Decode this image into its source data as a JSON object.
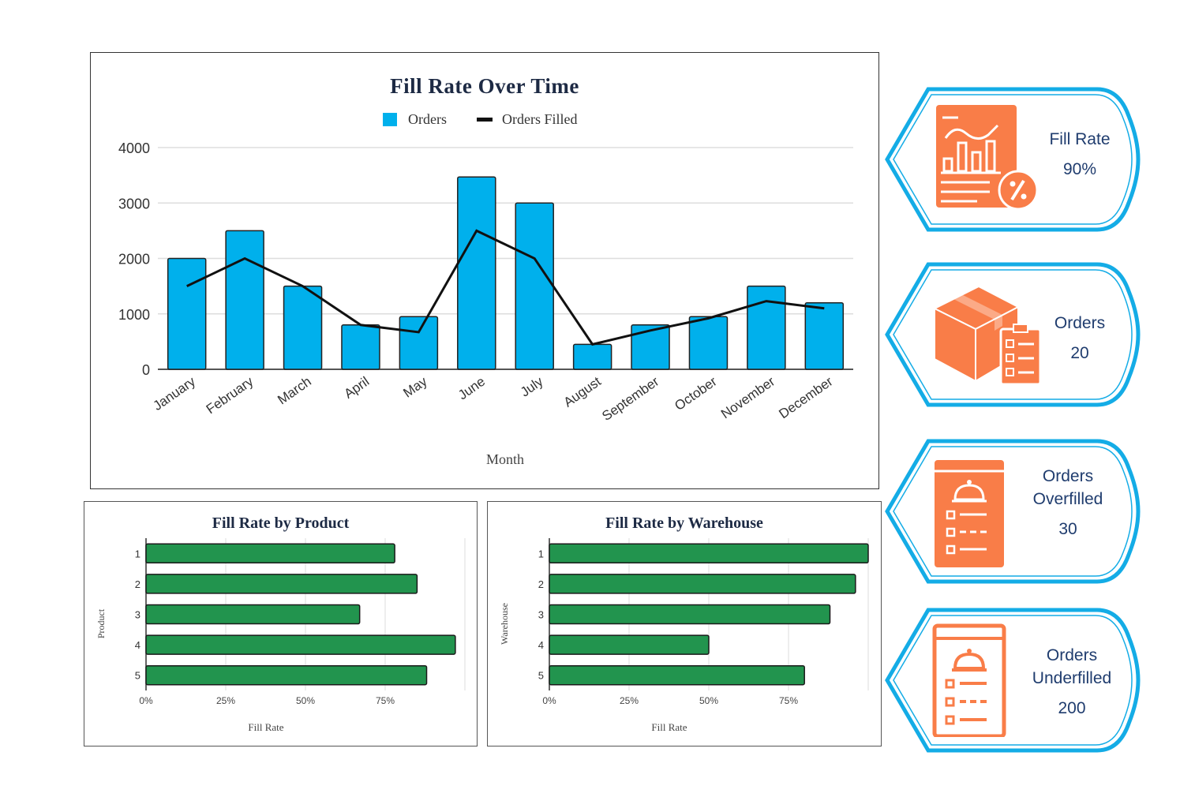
{
  "colors": {
    "orders": "#00B0EC",
    "filled_line": "#111111",
    "bars_green": "#22944E",
    "card_border": "#14ACE6",
    "icon": "#F97D48",
    "card_text": "#1F3C6E"
  },
  "chart_data": [
    {
      "type": "bar+line",
      "title": "Fill Rate Over Time",
      "xlabel": "Month",
      "ylabel": "",
      "ylim": [
        0,
        4000
      ],
      "yticks": [
        "0",
        "1000",
        "2000",
        "3000",
        "4000"
      ],
      "grid": true,
      "legend": "top",
      "categories": [
        "January",
        "February",
        "March",
        "April",
        "May",
        "June",
        "July",
        "August",
        "September",
        "October",
        "November",
        "December"
      ],
      "series": [
        {
          "name": "Orders",
          "type": "bar",
          "values": [
            2000,
            2500,
            1500,
            800,
            950,
            3470,
            3000,
            450,
            800,
            950,
            1500,
            1200
          ]
        },
        {
          "name": "Orders Filled",
          "type": "line",
          "values": [
            1500,
            2000,
            1500,
            800,
            670,
            2500,
            2000,
            450,
            700,
            920,
            1230,
            1100
          ]
        }
      ]
    },
    {
      "type": "bar",
      "orientation": "horizontal",
      "title": "Fill Rate by Product",
      "xlabel": "Fill Rate",
      "ylabel": "Product",
      "categories": [
        "1",
        "2",
        "3",
        "4",
        "5"
      ],
      "values": [
        0.78,
        0.85,
        0.67,
        0.97,
        0.88
      ],
      "xlim": [
        0,
        1
      ],
      "xticks": [
        "0%",
        "25%",
        "50%",
        "75%"
      ],
      "grid": true
    },
    {
      "type": "bar",
      "orientation": "horizontal",
      "title": "Fill Rate by Warehouse",
      "xlabel": "Fill Rate",
      "ylabel": "Warehouse",
      "categories": [
        "1",
        "2",
        "3",
        "4",
        "5"
      ],
      "values": [
        1.0,
        0.96,
        0.88,
        0.5,
        0.8
      ],
      "xlim": [
        0,
        1
      ],
      "xticks": [
        "0%",
        "25%",
        "50%",
        "75%"
      ],
      "grid": true
    }
  ],
  "kpis": [
    {
      "label": "Fill Rate",
      "value": "90%",
      "icon": "report-percent-icon"
    },
    {
      "label": "Orders",
      "value": "20",
      "icon": "box-checklist-icon"
    },
    {
      "label": "Orders Overfilled",
      "value": "30",
      "icon": "clipboard-bell-icon"
    },
    {
      "label": "Orders Underfilled",
      "value": "200",
      "icon": "clipboard-bell-icon"
    }
  ]
}
